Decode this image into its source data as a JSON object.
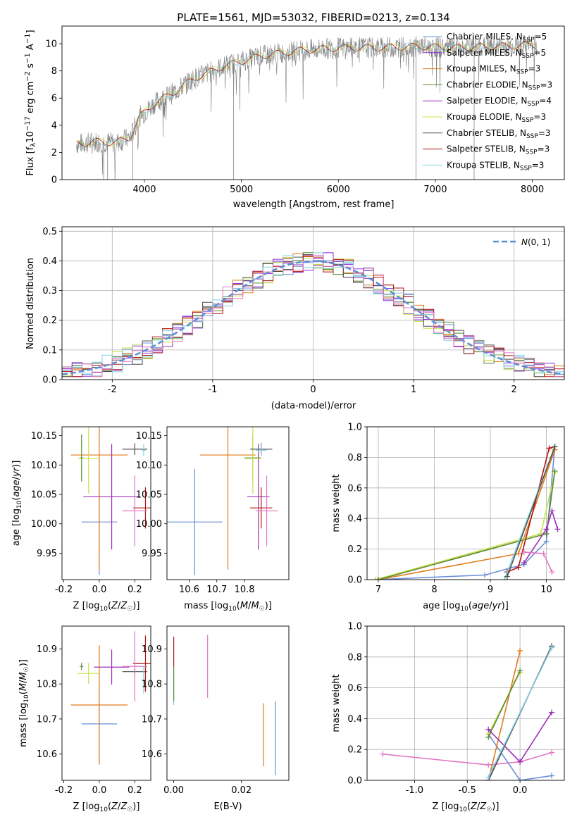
{
  "figure_title": "PLATE=1561, MJD=53032, FIBERID=0213, z=0.134",
  "colors": {
    "Chabrier MILES": "#6a8fd8",
    "Salpeter MILES": "#8a2be2",
    "Kroupa MILES": "#e07b1a",
    "Chabrier ELODIE": "#5a8a3a",
    "Salpeter ELODIE": "#9b30b8",
    "Kroupa ELODIE": "#c8e04a",
    "Chabrier STELIB": "#505050",
    "Salpeter STELIB": "#b01515",
    "Kroupa STELIB": "#7fd3e0",
    "extra_pink": "#e377c2",
    "gauss": "#5b8fd5"
  },
  "chart_data": [
    {
      "id": "spectrum",
      "type": "line",
      "title": "PLATE=1561, MJD=53032, FIBERID=0213, z=0.134",
      "xlabel": "wavelength [Angstrom, rest frame]",
      "ylabel": "Flux [f$_\\lambda$10$^{-17}$ erg cm$^{-2}$ s$^{-1}$ A$^{-1}$]",
      "xlim": [
        3150,
        8330
      ],
      "ylim": [
        0,
        11.3
      ],
      "xticks": [
        4000,
        5000,
        6000,
        7000,
        8000
      ],
      "yticks": [
        0,
        2,
        4,
        6,
        8,
        10
      ],
      "legend_position": "right",
      "legend": [
        {
          "name": "Chabrier MILES, N",
          "sub": "SSP",
          "eq": "=5"
        },
        {
          "name": "Salpeter MILES, N",
          "sub": "SSP",
          "eq": "=5"
        },
        {
          "name": "Kroupa MILES, N",
          "sub": "SSP",
          "eq": "=3"
        },
        {
          "name": "Chabrier ELODIE, N",
          "sub": "SSP",
          "eq": "=3"
        },
        {
          "name": "Salpeter ELODIE, N",
          "sub": "SSP",
          "eq": "=4"
        },
        {
          "name": "Kroupa ELODIE, N",
          "sub": "SSP",
          "eq": "=3"
        },
        {
          "name": "Chabrier STELIB, N",
          "sub": "SSP",
          "eq": "=3"
        },
        {
          "name": "Salpeter STELIB, N",
          "sub": "SSP",
          "eq": "=3"
        },
        {
          "name": "Kroupa STELIB, N",
          "sub": "SSP",
          "eq": "=3"
        }
      ],
      "continuum": [
        [
          3300,
          2.6
        ],
        [
          3500,
          2.8
        ],
        [
          3700,
          2.7
        ],
        [
          3850,
          3.1
        ],
        [
          3950,
          4.6
        ],
        [
          4100,
          5.6
        ],
        [
          4300,
          6.4
        ],
        [
          4500,
          7.4
        ],
        [
          4800,
          8.3
        ],
        [
          5200,
          9.1
        ],
        [
          5600,
          9.5
        ],
        [
          6000,
          9.7
        ],
        [
          6400,
          9.7
        ],
        [
          6800,
          9.8
        ],
        [
          7200,
          9.7
        ],
        [
          7600,
          9.8
        ],
        [
          8000,
          9.9
        ],
        [
          8050,
          9.9
        ]
      ],
      "spikes": [
        [
          3580,
          0
        ],
        [
          3620,
          0
        ],
        [
          3880,
          0
        ],
        [
          4920,
          0
        ],
        [
          6800,
          0
        ],
        [
          7400,
          0
        ]
      ]
    },
    {
      "id": "residuals",
      "type": "area",
      "xlabel": "(data-model)/error",
      "ylabel": "Normed distribution",
      "xlim": [
        -2.5,
        2.5
      ],
      "ylim": [
        0,
        0.515
      ],
      "xticks": [
        -2,
        -1,
        0,
        1,
        2
      ],
      "yticks": [
        0.0,
        0.1,
        0.2,
        0.3,
        0.4,
        0.5
      ],
      "grid": true,
      "legend_position": "top-right",
      "series_gauss": {
        "name": "N(0,1)",
        "mean": 0,
        "sigma": 1
      },
      "bins": {
        "start": -2.5,
        "width": 0.1,
        "count": 50
      }
    },
    {
      "id": "age_vs_Z",
      "type": "scatter",
      "xlabel": "Z [log10(Z/Z☉)]",
      "ylabel": "age [log10(age/yr)]",
      "xlim": [
        -0.21,
        0.29
      ],
      "ylim": [
        9.905,
        10.165
      ],
      "xticks": [
        -0.2,
        0.0,
        0.2
      ],
      "yticks": [
        9.95,
        10.0,
        10.05,
        10.1,
        10.15
      ],
      "points": [
        {
          "s": "Chabrier MILES",
          "x": 0.0,
          "xe": 0.1,
          "y": 10.003,
          "ye": 0.09
        },
        {
          "s": "Kroupa MILES",
          "x": 0.0,
          "xe": 0.16,
          "y": 10.117,
          "ye": 0.195
        },
        {
          "s": "Salpeter ELODIE",
          "x": 0.07,
          "xe": 0.16,
          "y": 10.046,
          "ye": 0.09
        },
        {
          "s": "Chabrier ELODIE",
          "x": -0.1,
          "xe": 0.01,
          "y": 10.112,
          "ye": 0.04
        },
        {
          "s": "Kroupa ELODIE",
          "x": -0.06,
          "xe": 0.06,
          "y": 10.111,
          "ye": 0.06
        },
        {
          "s": "Chabrier STELIB",
          "x": 0.2,
          "xe": 0.07,
          "y": 10.127,
          "ye": 0.01
        },
        {
          "s": "Salpeter STELIB",
          "x": 0.26,
          "xe": 0.07,
          "y": 10.027,
          "ye": 0.035
        },
        {
          "s": "extra_pink",
          "x": 0.2,
          "xe": 0.07,
          "y": 10.022,
          "ye": 0.06
        },
        {
          "s": "Kroupa STELIB",
          "x": 0.25,
          "xe": 0.01,
          "y": 10.125,
          "ye": 0.01
        }
      ]
    },
    {
      "id": "age_vs_mass",
      "type": "scatter",
      "xlabel": "mass [log10(M/M☉)]",
      "ylabel": "",
      "xlim": [
        10.52,
        10.96
      ],
      "ylim": [
        9.905,
        10.165
      ],
      "xticks": [
        10.6,
        10.7,
        10.8
      ],
      "yticks": [
        9.95,
        10.0,
        10.05,
        10.1,
        10.15
      ],
      "points": [
        {
          "s": "Chabrier MILES",
          "x": 10.62,
          "xe": 0.1,
          "y": 10.003,
          "ye": 0.09
        },
        {
          "s": "Kroupa MILES",
          "x": 10.74,
          "xe": 0.1,
          "y": 10.117,
          "ye": 0.195
        },
        {
          "s": "Salpeter ELODIE",
          "x": 10.85,
          "xe": 0.04,
          "y": 10.046,
          "ye": 0.09
        },
        {
          "s": "Chabrier ELODIE",
          "x": 10.83,
          "xe": 0.03,
          "y": 10.112,
          "ye": 0.04
        },
        {
          "s": "Kroupa ELODIE",
          "x": 10.83,
          "xe": 0.03,
          "y": 10.111,
          "ye": 0.06
        },
        {
          "s": "Chabrier STELIB",
          "x": 10.86,
          "xe": 0.04,
          "y": 10.127,
          "ye": 0.01
        },
        {
          "s": "Salpeter STELIB",
          "x": 10.86,
          "xe": 0.04,
          "y": 10.027,
          "ye": 0.035
        },
        {
          "s": "extra_pink",
          "x": 10.88,
          "xe": 0.04,
          "y": 10.022,
          "ye": 0.06
        },
        {
          "s": "Kroupa STELIB",
          "x": 10.86,
          "xe": 0.02,
          "y": 10.125,
          "ye": 0.01
        }
      ]
    },
    {
      "id": "mw_vs_age",
      "type": "line",
      "xlabel": "age [log10(age/yr)]",
      "ylabel": "mass weight",
      "xlim": [
        6.8,
        10.32
      ],
      "ylim": [
        0,
        1.0
      ],
      "xticks": [
        7,
        8,
        9,
        10
      ],
      "yticks": [
        0.0,
        0.2,
        0.4,
        0.6,
        0.8,
        1.0
      ],
      "grid": true,
      "series": [
        {
          "s": "Chabrier MILES",
          "points": [
            [
              6.95,
              0.0
            ],
            [
              8.9,
              0.03
            ],
            [
              9.6,
              0.1
            ],
            [
              10.0,
              0.25
            ],
            [
              10.15,
              0.87
            ]
          ]
        },
        {
          "s": "Kroupa MILES",
          "points": [
            [
              7.0,
              0.0
            ],
            [
              9.5,
              0.17
            ],
            [
              10.15,
              0.85
            ]
          ]
        },
        {
          "s": "Kroupa ELODIE",
          "points": [
            [
              6.95,
              0.0
            ],
            [
              9.9,
              0.3
            ],
            [
              10.15,
              0.7
            ]
          ]
        },
        {
          "s": "Chabrier ELODIE",
          "points": [
            [
              7.0,
              0.0
            ],
            [
              10.0,
              0.3
            ],
            [
              10.15,
              0.71
            ]
          ]
        },
        {
          "s": "Salpeter ELODIE",
          "points": [
            [
              9.6,
              0.11
            ],
            [
              10.0,
              0.33
            ],
            [
              10.1,
              0.45
            ],
            [
              10.2,
              0.33
            ]
          ]
        },
        {
          "s": "Salpeter STELIB",
          "points": [
            [
              9.3,
              0.05
            ],
            [
              9.5,
              0.08
            ],
            [
              10.05,
              0.86
            ],
            [
              10.15,
              0.87
            ]
          ]
        },
        {
          "s": "Kroupa STELIB",
          "points": [
            [
              9.25,
              0.0
            ],
            [
              10.15,
              0.87
            ]
          ]
        },
        {
          "s": "Chabrier STELIB",
          "points": [
            [
              9.3,
              0.02
            ],
            [
              10.15,
              0.87
            ]
          ]
        },
        {
          "s": "extra_pink",
          "points": [
            [
              9.6,
              0.18
            ],
            [
              9.95,
              0.17
            ],
            [
              10.1,
              0.05
            ]
          ]
        }
      ]
    },
    {
      "id": "mass_vs_Z",
      "type": "scatter",
      "xlabel": "Z [log10(Z/Z☉)]",
      "ylabel": "mass [log10(M/M☉)]",
      "xlim": [
        -0.21,
        0.29
      ],
      "ylim": [
        10.525,
        10.965
      ],
      "xticks": [
        -0.2,
        0.0,
        0.2
      ],
      "yticks": [
        10.6,
        10.7,
        10.8,
        10.9
      ],
      "points": [
        {
          "s": "Chabrier MILES",
          "x": 0.0,
          "xe": 0.1,
          "y": 10.686,
          "ye": 0.1
        },
        {
          "s": "Kroupa MILES",
          "x": 0.0,
          "xe": 0.16,
          "y": 10.74,
          "ye": 0.17
        },
        {
          "s": "Salpeter ELODIE",
          "x": 0.07,
          "xe": 0.1,
          "y": 10.848,
          "ye": 0.05
        },
        {
          "s": "Chabrier ELODIE",
          "x": -0.1,
          "xe": 0.01,
          "y": 10.85,
          "ye": 0.01
        },
        {
          "s": "Kroupa ELODIE",
          "x": -0.06,
          "xe": 0.06,
          "y": 10.83,
          "ye": 0.03
        },
        {
          "s": "Chabrier STELIB",
          "x": 0.2,
          "xe": 0.07,
          "y": 10.835,
          "ye": 0.01
        },
        {
          "s": "Salpeter STELIB",
          "x": 0.26,
          "xe": 0.07,
          "y": 10.858,
          "ye": 0.08
        },
        {
          "s": "extra_pink",
          "x": 0.2,
          "xe": 0.07,
          "y": 10.85,
          "ye": 0.1
        },
        {
          "s": "Kroupa STELIB",
          "x": 0.25,
          "xe": 0.01,
          "y": 10.812,
          "ye": 0.04
        }
      ]
    },
    {
      "id": "mass_vs_ebv",
      "type": "scatter",
      "xlabel": "E(B-V)",
      "ylabel": "",
      "xlim": [
        -0.002,
        0.034
      ],
      "ylim": [
        10.525,
        10.965
      ],
      "xticks": [
        0.0,
        0.02
      ],
      "yticks": [
        10.6,
        10.7,
        10.8,
        10.9
      ],
      "points": [
        {
          "s": "Chabrier MILES",
          "x": 0.03,
          "xe": 0.0,
          "y": 10.645,
          "ye": 0.105
        },
        {
          "s": "Kroupa MILES",
          "x": 0.0265,
          "xe": 0.0,
          "y": 10.655,
          "ye": 0.09
        },
        {
          "s": "extra_pink",
          "x": 0.01,
          "xe": 0.0,
          "y": 10.85,
          "ye": 0.09
        },
        {
          "s": "Salpeter STELIB",
          "x": 0.0,
          "xe": 0.0,
          "y": 10.89,
          "ye": 0.045
        },
        {
          "s": "Kroupa STELIB",
          "x": 0.0,
          "xe": 0.0,
          "y": 10.79,
          "ye": 0.05
        },
        {
          "s": "Chabrier ELODIE",
          "x": 0.0,
          "xe": 0.0,
          "y": 10.8,
          "ye": 0.05
        }
      ]
    },
    {
      "id": "mw_vs_Z",
      "type": "line",
      "xlabel": "Z [log10(Z/Z☉)]",
      "ylabel": "mass weight",
      "xlim": [
        -1.45,
        0.42
      ],
      "ylim": [
        0,
        1.0
      ],
      "xticks": [
        -1.0,
        -0.5,
        0.0
      ],
      "yticks": [
        0.0,
        0.2,
        0.4,
        0.6,
        0.8,
        1.0
      ],
      "grid": true,
      "series": [
        {
          "s": "extra_pink",
          "points": [
            [
              -1.3,
              0.17
            ],
            [
              -0.3,
              0.1
            ],
            [
              0.0,
              0.12
            ],
            [
              0.3,
              0.18
            ]
          ]
        },
        {
          "s": "Chabrier MILES",
          "points": [
            [
              -0.3,
              0.3
            ],
            [
              0.0,
              0.0
            ],
            [
              0.3,
              0.03
            ]
          ]
        },
        {
          "s": "Kroupa MILES",
          "points": [
            [
              -0.3,
              0.0
            ],
            [
              0.0,
              0.84
            ]
          ]
        },
        {
          "s": "Kroupa ELODIE",
          "points": [
            [
              -0.3,
              0.3
            ],
            [
              0.0,
              0.7
            ]
          ]
        },
        {
          "s": "Chabrier ELODIE",
          "points": [
            [
              -0.3,
              0.28
            ],
            [
              0.0,
              0.71
            ]
          ]
        },
        {
          "s": "Salpeter ELODIE",
          "points": [
            [
              -0.3,
              0.33
            ],
            [
              0.0,
              0.12
            ],
            [
              0.3,
              0.44
            ]
          ]
        },
        {
          "s": "Salpeter STELIB",
          "points": [
            [
              -0.3,
              0.0
            ],
            [
              0.3,
              0.87
            ]
          ]
        },
        {
          "s": "Chabrier STELIB",
          "points": [
            [
              -0.3,
              0.0
            ],
            [
              0.3,
              0.87
            ]
          ]
        },
        {
          "s": "Kroupa STELIB",
          "points": [
            [
              -0.3,
              0.02
            ],
            [
              0.3,
              0.86
            ]
          ]
        }
      ]
    }
  ]
}
